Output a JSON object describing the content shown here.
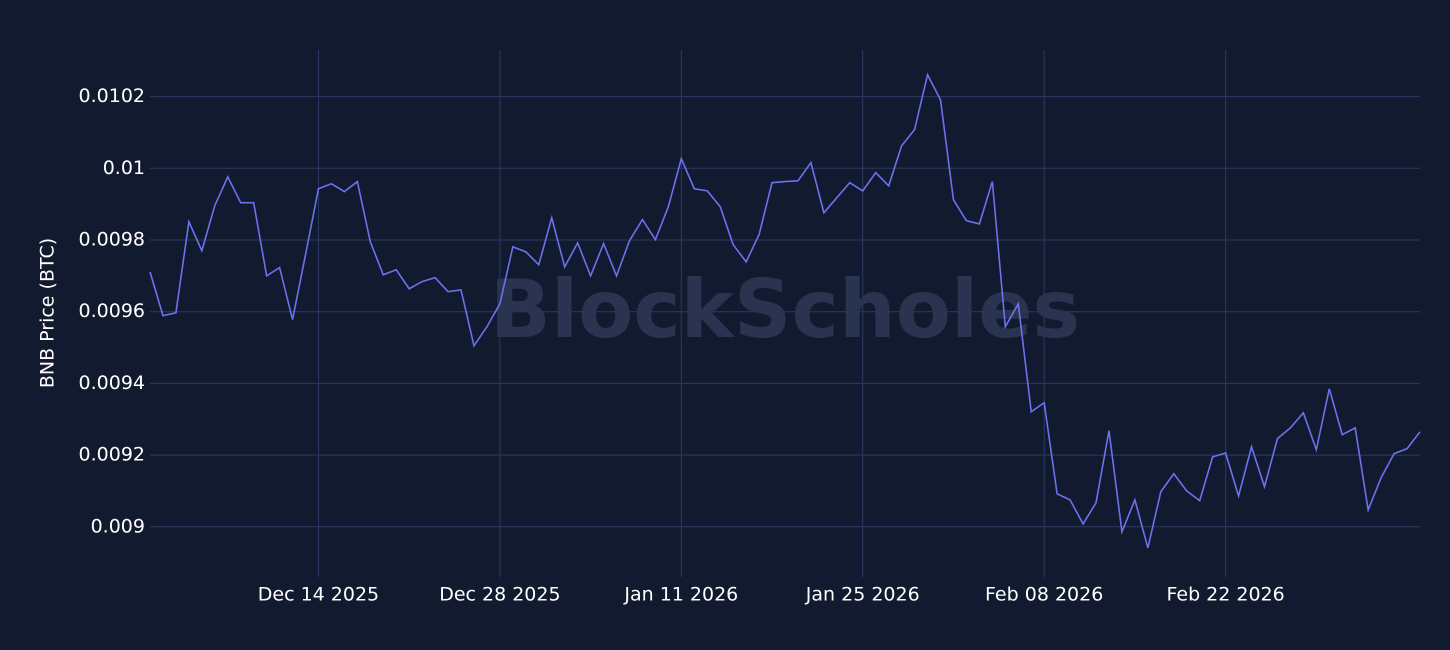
{
  "chart_data": {
    "type": "line",
    "watermark": "BlockScholes",
    "y_label": "BNB Price (BTC)",
    "x": [
      "2025-12-01",
      "2025-12-02",
      "2025-12-03",
      "2025-12-04",
      "2025-12-05",
      "2025-12-06",
      "2025-12-07",
      "2025-12-08",
      "2025-12-09",
      "2025-12-10",
      "2025-12-11",
      "2025-12-12",
      "2025-12-13",
      "2025-12-14",
      "2025-12-15",
      "2025-12-16",
      "2025-12-17",
      "2025-12-18",
      "2025-12-19",
      "2025-12-20",
      "2025-12-21",
      "2025-12-22",
      "2025-12-23",
      "2025-12-24",
      "2025-12-25",
      "2025-12-26",
      "2025-12-27",
      "2025-12-28",
      "2025-12-29",
      "2025-12-30",
      "2025-12-31",
      "2026-01-01",
      "2026-01-02",
      "2026-01-03",
      "2026-01-04",
      "2026-01-05",
      "2026-01-06",
      "2026-01-07",
      "2026-01-08",
      "2026-01-09",
      "2026-01-10",
      "2026-01-11",
      "2026-01-12",
      "2026-01-13",
      "2026-01-14",
      "2026-01-15",
      "2026-01-16",
      "2026-01-17",
      "2026-01-18",
      "2026-01-19",
      "2026-01-20",
      "2026-01-21",
      "2026-01-22",
      "2026-01-23",
      "2026-01-24",
      "2026-01-25",
      "2026-01-26",
      "2026-01-27",
      "2026-01-28",
      "2026-01-29",
      "2026-01-30",
      "2026-01-31",
      "2026-02-01",
      "2026-02-02",
      "2026-02-03",
      "2026-02-04",
      "2026-02-05",
      "2026-02-06",
      "2026-02-07",
      "2026-02-08",
      "2026-02-09",
      "2026-02-10",
      "2026-02-11",
      "2026-02-12",
      "2026-02-13",
      "2026-02-14",
      "2026-02-15",
      "2026-02-16",
      "2026-02-17",
      "2026-02-18",
      "2026-02-19",
      "2026-02-20",
      "2026-02-21",
      "2026-02-22",
      "2026-02-23",
      "2026-02-24",
      "2026-02-25",
      "2026-02-26",
      "2026-02-27",
      "2026-02-28",
      "2026-03-01",
      "2026-03-02",
      "2026-03-03",
      "2026-03-04",
      "2026-03-05",
      "2026-03-06",
      "2026-03-07",
      "2026-03-08",
      "2026-03-09"
    ],
    "series": [
      {
        "name": "BNB/BTC",
        "color": "#6b72ef",
        "values": [
          0.009711,
          0.009589,
          0.009597,
          0.009851,
          0.00977,
          0.009896,
          0.009976,
          0.009904,
          0.009904,
          0.0097,
          0.009723,
          0.009578,
          0.009759,
          0.009943,
          0.009957,
          0.009935,
          0.009963,
          0.009795,
          0.009703,
          0.009717,
          0.009664,
          0.009684,
          0.009695,
          0.009656,
          0.009661,
          0.009505,
          0.009558,
          0.009622,
          0.009781,
          0.009767,
          0.009731,
          0.009862,
          0.009725,
          0.009792,
          0.0097,
          0.00979,
          0.0097,
          0.009798,
          0.009857,
          0.009801,
          0.009893,
          0.010027,
          0.009943,
          0.009937,
          0.009893,
          0.009787,
          0.009739,
          0.009815,
          0.00996,
          0.009963,
          0.009965,
          0.010016,
          0.009876,
          0.009918,
          0.00996,
          0.009937,
          0.009988,
          0.009951,
          0.010063,
          0.010108,
          0.010261,
          0.010191,
          0.009912,
          0.009854,
          0.009845,
          0.009963,
          0.009558,
          0.009622,
          0.009321,
          0.009346,
          0.009092,
          0.009075,
          0.009008,
          0.009067,
          0.009268,
          0.008986,
          0.009075,
          0.008941,
          0.009098,
          0.009148,
          0.0091,
          0.009073,
          0.009195,
          0.009206,
          0.009086,
          0.009223,
          0.009112,
          0.009246,
          0.009276,
          0.009318,
          0.009215,
          0.009385,
          0.009257,
          0.009276,
          0.009047,
          0.009137,
          0.009204,
          0.009218,
          0.009265
        ]
      }
    ],
    "xlim": [
      "2025-12-01",
      "2026-03-09"
    ],
    "xticks": [
      {
        "value": "2025-12-14",
        "label": "Dec 14 2025"
      },
      {
        "value": "2025-12-28",
        "label": "Dec 28 2025"
      },
      {
        "value": "2026-01-11",
        "label": "Jan 11 2026"
      },
      {
        "value": "2026-01-25",
        "label": "Jan 25 2026"
      },
      {
        "value": "2026-02-08",
        "label": "Feb 08 2026"
      },
      {
        "value": "2026-02-22",
        "label": "Feb 22 2026"
      }
    ],
    "ylim": [
      0.00886,
      0.01033
    ],
    "yticks": [
      0.009,
      0.0092,
      0.0094,
      0.0096,
      0.0098,
      0.01,
      0.0102
    ],
    "grid": true
  }
}
